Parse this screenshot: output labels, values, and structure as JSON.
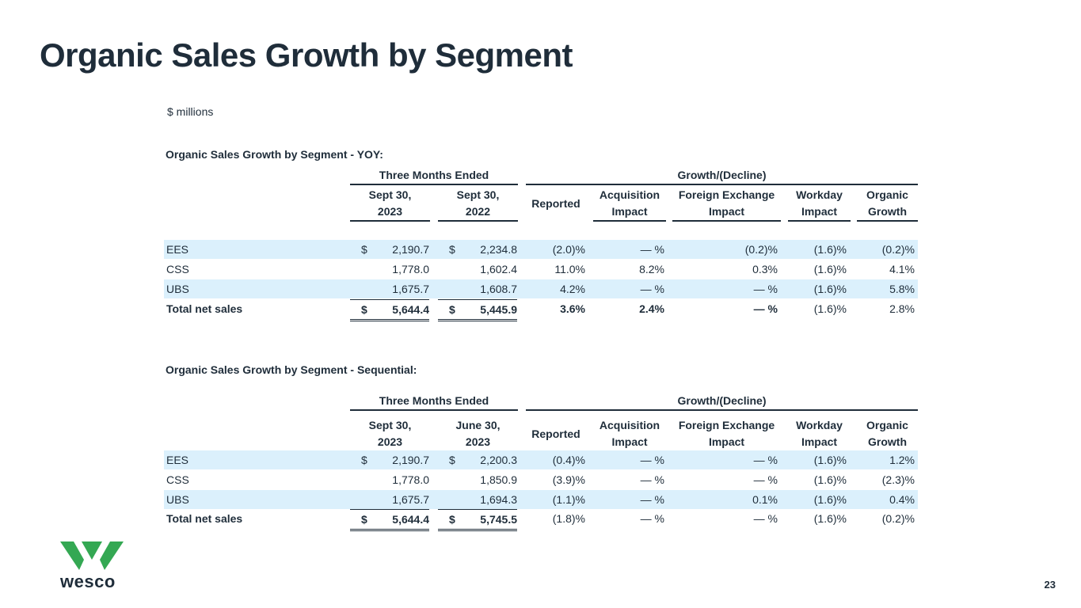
{
  "title": "Organic Sales Growth by Segment",
  "units": "$ millions",
  "brand": {
    "name": "wesco",
    "accent": "#34a853",
    "text_color": "#1f2d3a"
  },
  "page_number": "23",
  "yoy": {
    "section_title": "Organic Sales Growth by Segment - YOY:",
    "group_left": "Three Months Ended",
    "group_right": "Growth/(Decline)",
    "col1": [
      "Sept 30,",
      "2023"
    ],
    "col2": [
      "Sept 30,",
      "2022"
    ],
    "reported": "Reported",
    "acquisition": [
      "Acquisition",
      "Impact"
    ],
    "fx": [
      "Foreign Exchange",
      "Impact"
    ],
    "workday": [
      "Workday",
      "Impact"
    ],
    "organic": [
      "Organic",
      "Growth"
    ],
    "rows": [
      {
        "label": "EES",
        "dollar1": "$",
        "v1": "2,190.7",
        "dollar2": "$",
        "v2": "2,234.8",
        "reported": "(2.0)%",
        "acq": "— %",
        "fx": "(0.2)%",
        "workday": "(1.6)%",
        "organic": "(0.2)%"
      },
      {
        "label": "CSS",
        "dollar1": "",
        "v1": "1,778.0",
        "dollar2": "",
        "v2": "1,602.4",
        "reported": "11.0%",
        "acq": "8.2%",
        "fx": "0.3%",
        "workday": "(1.6)%",
        "organic": "4.1%"
      },
      {
        "label": "UBS",
        "dollar1": "",
        "v1": "1,675.7",
        "dollar2": "",
        "v2": "1,608.7",
        "reported": "4.2%",
        "acq": "— %",
        "fx": "— %",
        "workday": "(1.6)%",
        "organic": "5.8%"
      },
      {
        "label": "Total net sales",
        "dollar1": "$",
        "v1": "5,644.4",
        "dollar2": "$",
        "v2": "5,445.9",
        "reported": "3.6%",
        "acq": "2.4%",
        "fx": "— %",
        "workday": "(1.6)%",
        "organic": "2.8%"
      }
    ]
  },
  "seq": {
    "section_title": "Organic Sales Growth by Segment - Sequential:",
    "group_left": "Three Months Ended",
    "group_right": "Growth/(Decline)",
    "col1": [
      "Sept 30,",
      "2023"
    ],
    "col2": [
      "June 30,",
      "2023"
    ],
    "reported": "Reported",
    "acquisition": [
      "Acquisition",
      "Impact"
    ],
    "fx": [
      "Foreign Exchange",
      "Impact"
    ],
    "workday": [
      "Workday",
      "Impact"
    ],
    "organic": [
      "Organic",
      "Growth"
    ],
    "rows": [
      {
        "label": "EES",
        "dollar1": "$",
        "v1": "2,190.7",
        "dollar2": "$",
        "v2": "2,200.3",
        "reported": "(0.4)%",
        "acq": "— %",
        "fx": "— %",
        "workday": "(1.6)%",
        "organic": "1.2%"
      },
      {
        "label": "CSS",
        "dollar1": "",
        "v1": "1,778.0",
        "dollar2": "",
        "v2": "1,850.9",
        "reported": "(3.9)%",
        "acq": "— %",
        "fx": "— %",
        "workday": "(1.6)%",
        "organic": "(2.3)%"
      },
      {
        "label": "UBS",
        "dollar1": "",
        "v1": "1,675.7",
        "dollar2": "",
        "v2": "1,694.3",
        "reported": "(1.1)%",
        "acq": "— %",
        "fx": "0.1%",
        "workday": "(1.6)%",
        "organic": "0.4%"
      },
      {
        "label": "Total net sales",
        "dollar1": "$",
        "v1": "5,644.4",
        "dollar2": "$",
        "v2": "5,745.5",
        "reported": "(1.8)%",
        "acq": "— %",
        "fx": "— %",
        "workday": "(1.6)%",
        "organic": "(0.2)%"
      }
    ]
  }
}
